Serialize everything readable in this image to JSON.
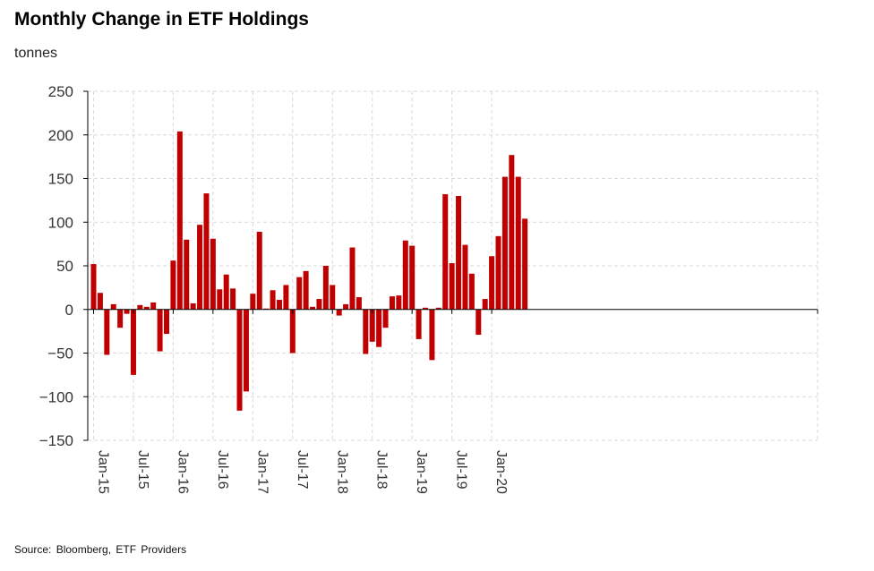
{
  "chart_data": {
    "type": "bar",
    "title": "Monthly Change in ETF Holdings",
    "unit_label": "tonnes",
    "source": "Source:  Bloomberg,  ETF Providers",
    "ylim": [
      -150,
      250
    ],
    "yticks": [
      -150,
      -100,
      -50,
      0,
      50,
      100,
      150,
      200,
      250
    ],
    "grid": true,
    "bar_color": "#c00000",
    "x_tick_labels": [
      "Jan-15",
      "Jul-15",
      "Jan-16",
      "Jul-16",
      "Jan-17",
      "Jul-17",
      "Jan-18",
      "Jul-18",
      "Jan-19",
      "Jul-19",
      "Jan-20"
    ],
    "x_tick_month_index": [
      0,
      6,
      12,
      18,
      24,
      30,
      36,
      42,
      48,
      54,
      60
    ],
    "categories": [
      "Jan-15",
      "Feb-15",
      "Mar-15",
      "Apr-15",
      "May-15",
      "Jun-15",
      "Jul-15",
      "Aug-15",
      "Sep-15",
      "Oct-15",
      "Nov-15",
      "Dec-15",
      "Jan-16",
      "Feb-16",
      "Mar-16",
      "Apr-16",
      "May-16",
      "Jun-16",
      "Jul-16",
      "Aug-16",
      "Sep-16",
      "Oct-16",
      "Nov-16",
      "Dec-16",
      "Jan-17",
      "Feb-17",
      "Mar-17",
      "Apr-17",
      "May-17",
      "Jun-17",
      "Jul-17",
      "Aug-17",
      "Sep-17",
      "Oct-17",
      "Nov-17",
      "Dec-17",
      "Jan-18",
      "Feb-18",
      "Mar-18",
      "Apr-18",
      "May-18",
      "Jun-18",
      "Jul-18",
      "Aug-18",
      "Sep-18",
      "Oct-18",
      "Nov-18",
      "Dec-18",
      "Jan-19",
      "Feb-19",
      "Mar-19",
      "Apr-19",
      "May-19",
      "Jun-19",
      "Jul-19",
      "Aug-19",
      "Sep-19",
      "Oct-19",
      "Nov-19",
      "Dec-19",
      "Jan-20",
      "Feb-20",
      "Mar-20",
      "Apr-20",
      "May-20",
      "Jun-20"
    ],
    "values": [
      52,
      19,
      -52,
      6,
      -21,
      -5,
      -75,
      5,
      3,
      8,
      -48,
      -28,
      56,
      204,
      80,
      7,
      97,
      133,
      81,
      23,
      40,
      24,
      -116,
      -94,
      18,
      89,
      1,
      22,
      11,
      28,
      -50,
      37,
      44,
      3,
      12,
      50,
      28,
      -7,
      6,
      71,
      14,
      -51,
      -37,
      -43,
      -21,
      15,
      16,
      79,
      73,
      -34,
      2,
      -58,
      2,
      132,
      53,
      130,
      74,
      41,
      -29,
      12,
      61,
      84,
      152,
      177,
      152,
      104
    ]
  }
}
